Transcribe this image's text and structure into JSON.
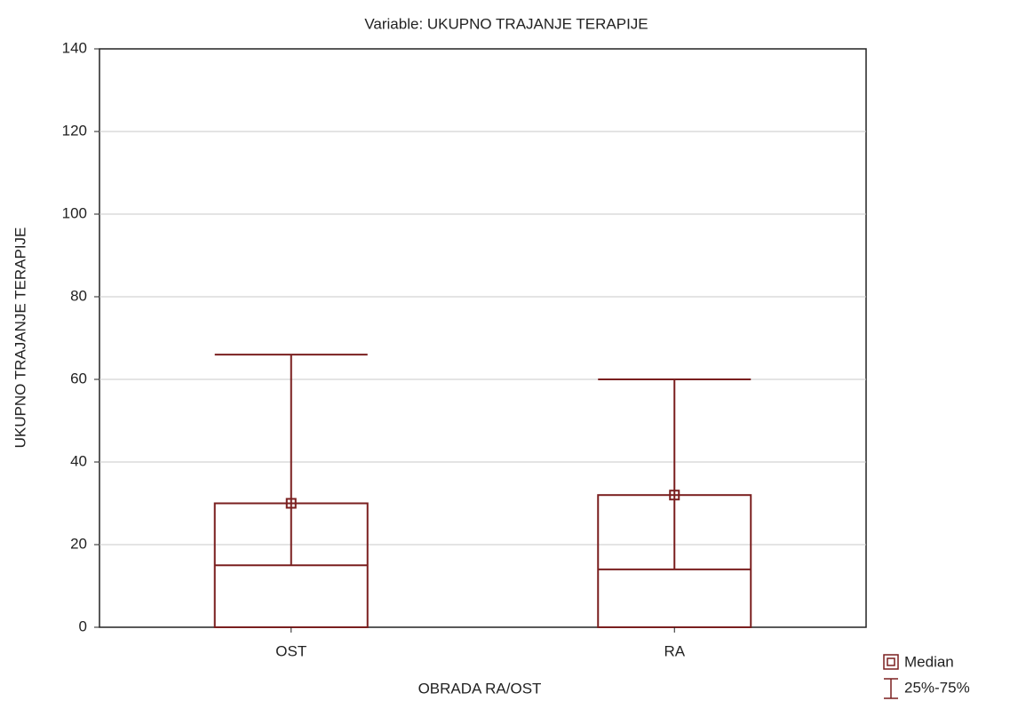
{
  "chart_data": {
    "type": "box",
    "title": "Variable: UKUPNO TRAJANJE TERAPIJE",
    "x_label": "OBRADA RA/OST",
    "y_label": "UKUPNO TRAJANJE TERAPIJE",
    "categories": [
      "OST",
      "RA"
    ],
    "median": [
      30,
      32
    ],
    "q25": [
      15,
      14
    ],
    "q75": [
      66,
      60
    ],
    "legend": {
      "median": "Median",
      "range": "25%-75%"
    },
    "color": "#7a1f1f",
    "ylim": [
      0,
      140
    ],
    "yticks": [
      0,
      20,
      40,
      60,
      80,
      100,
      120,
      140
    ],
    "grid": true
  }
}
